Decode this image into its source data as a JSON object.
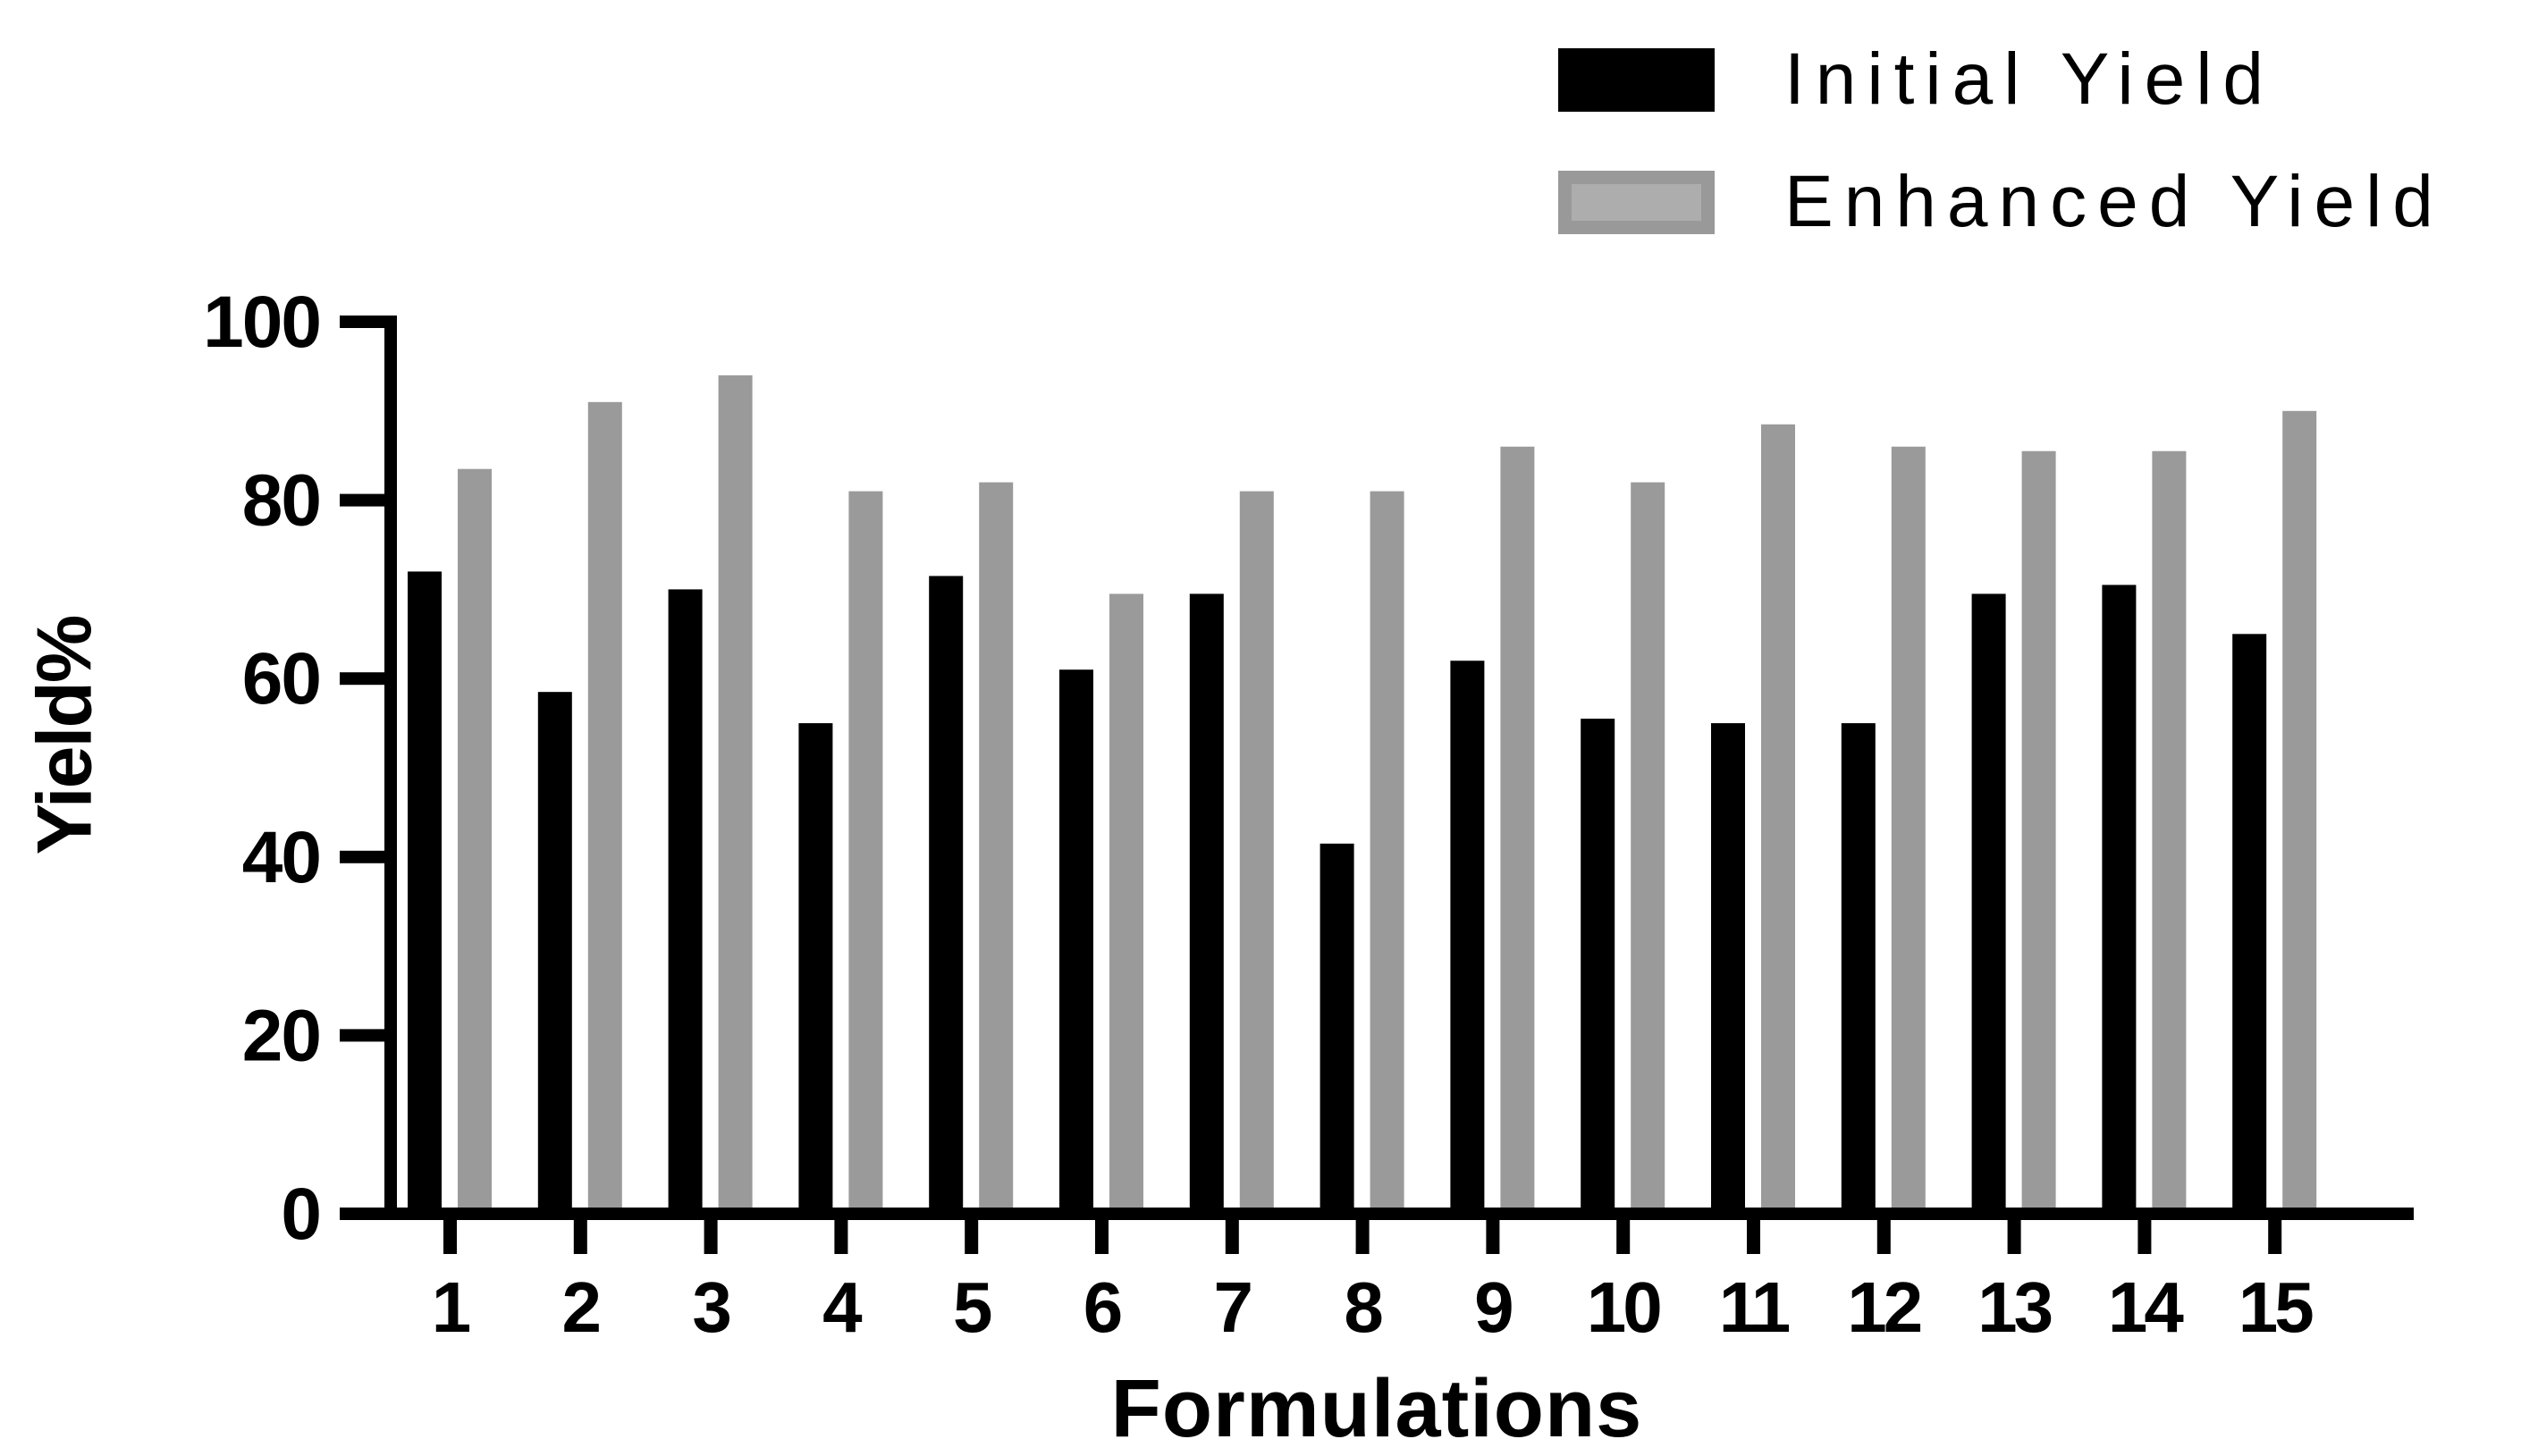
{
  "chart_data": {
    "type": "bar",
    "title": "",
    "categories": [
      "1",
      "2",
      "3",
      "4",
      "5",
      "6",
      "7",
      "8",
      "9",
      "10",
      "11",
      "12",
      "13",
      "14",
      "15"
    ],
    "series": [
      {
        "name": "Initial Yield",
        "color": "#000000",
        "values": [
          72,
          58.5,
          70,
          55,
          71.5,
          61,
          69.5,
          41.5,
          62,
          55.5,
          55,
          55,
          69.5,
          70.5,
          65
        ]
      },
      {
        "name": "Enhanced Yield",
        "color": "#9a9a9a",
        "values": [
          83.5,
          91,
          94,
          81,
          82,
          69.5,
          81,
          81,
          86,
          82,
          88.5,
          86,
          85.5,
          85.5,
          90
        ]
      }
    ],
    "xlabel": "Formulations",
    "ylabel": "Yield%",
    "ylim": [
      0,
      100
    ],
    "yticks": [
      0,
      20,
      40,
      60,
      80,
      100
    ],
    "grid": false,
    "legend_position": "top-right",
    "axis_color": "#000000",
    "background_color": "#ffffff"
  }
}
